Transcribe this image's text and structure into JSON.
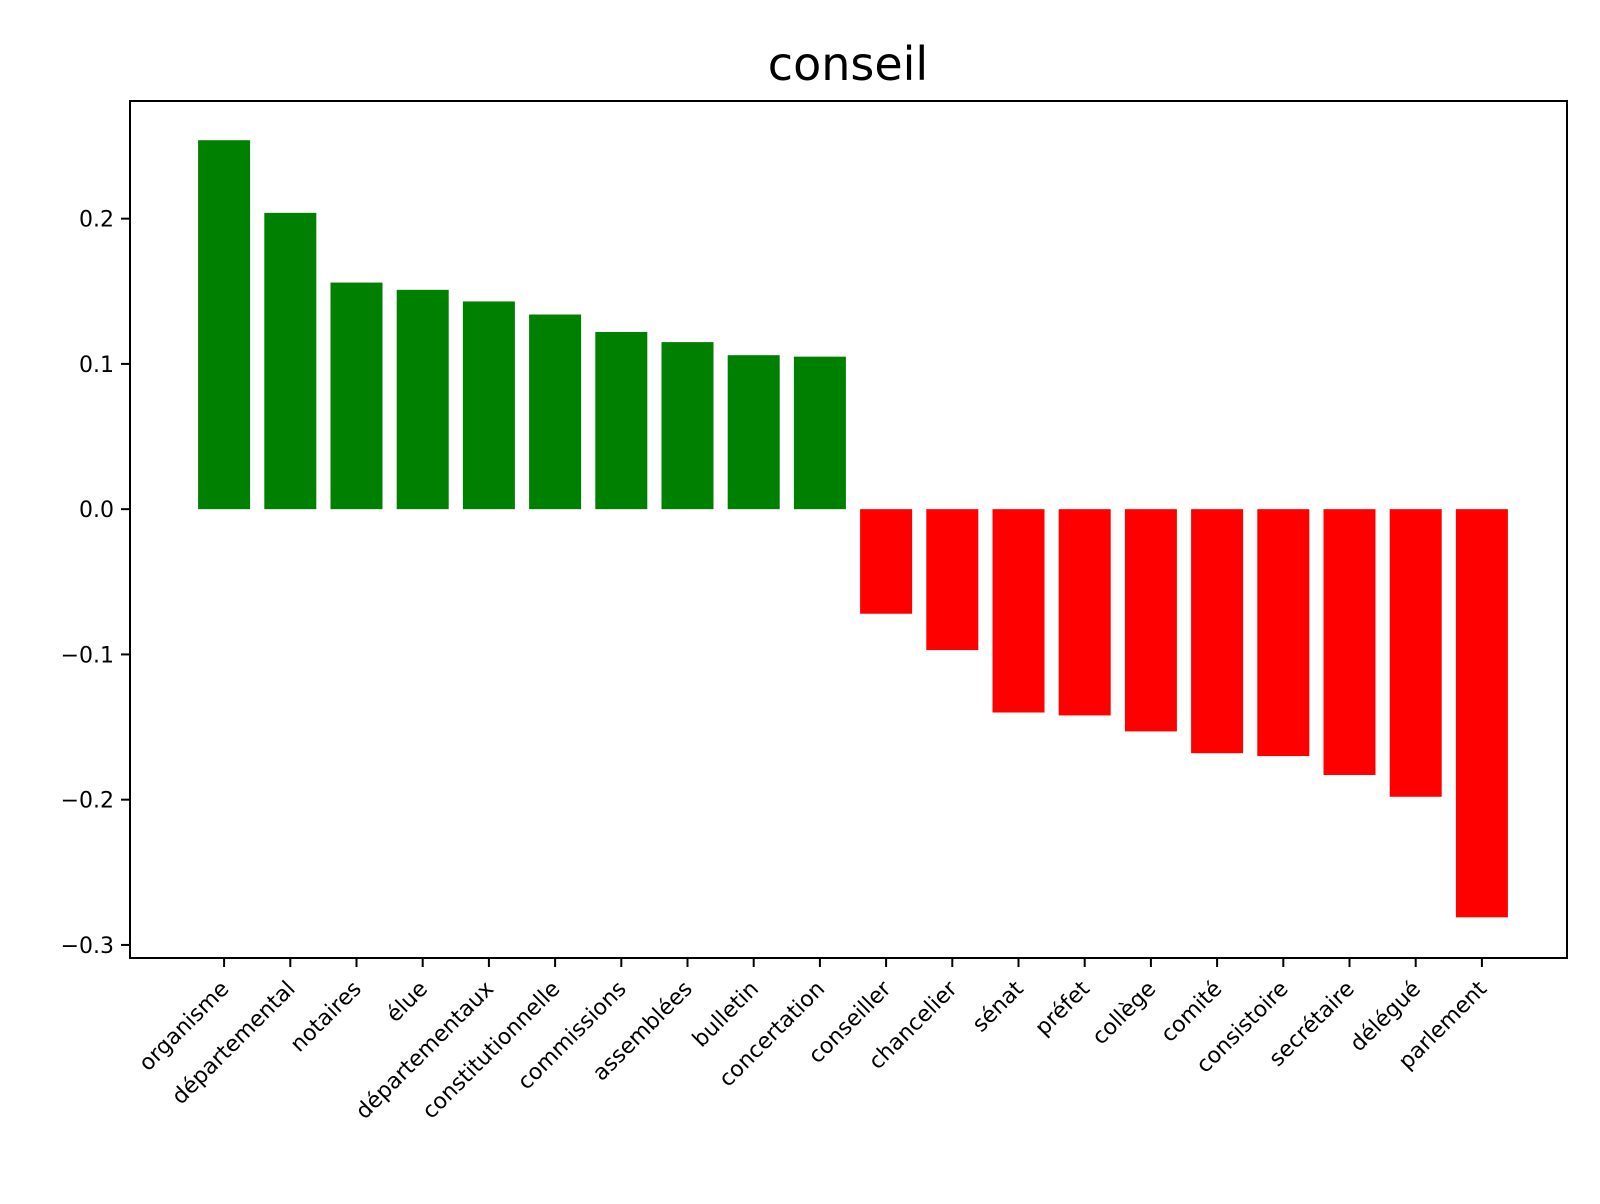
{
  "chart_data": {
    "type": "bar",
    "title": "conseil",
    "xlabel": "",
    "ylabel": "",
    "categories": [
      "organisme",
      "départemental",
      "notaires",
      "élue",
      "départementaux",
      "constitutionnelle",
      "commissions",
      "assemblées",
      "bulletin",
      "concertation",
      "conseiller",
      "chancelier",
      "sénat",
      "préfet",
      "collège",
      "comité",
      "consistoire",
      "secrétaire",
      "délégué",
      "parlement"
    ],
    "values": [
      0.254,
      0.204,
      0.156,
      0.151,
      0.143,
      0.134,
      0.122,
      0.115,
      0.106,
      0.105,
      -0.072,
      -0.097,
      -0.14,
      -0.142,
      -0.153,
      -0.168,
      -0.17,
      -0.183,
      -0.198,
      -0.281
    ],
    "yticks": [
      -0.3,
      -0.2,
      -0.1,
      0.0,
      0.1,
      0.2
    ],
    "ytick_labels": [
      "−0.3",
      "−0.2",
      "−0.1",
      "0.0",
      "0.1",
      "0.2"
    ],
    "ylim": [
      -0.309,
      0.281
    ],
    "colors": {
      "positive": "#008000",
      "negative": "#ff0000",
      "axes": "#000000",
      "background": "#ffffff"
    },
    "grid": false,
    "legend": "none"
  }
}
